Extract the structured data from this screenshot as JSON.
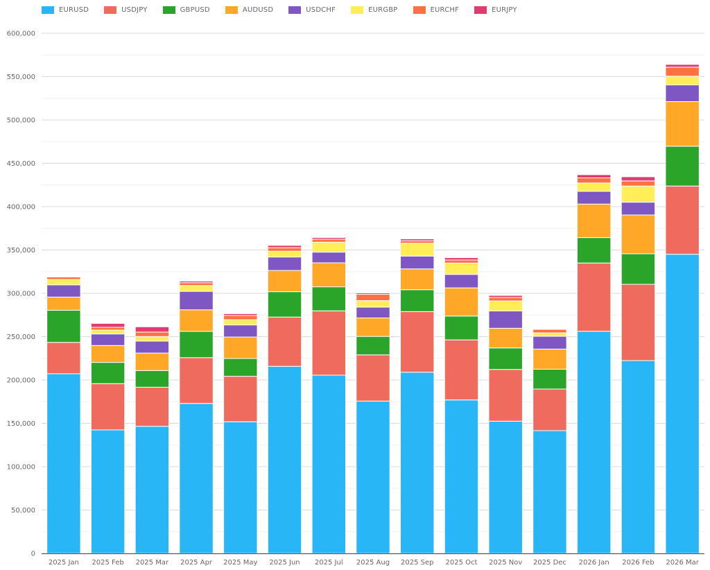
{
  "chart_data": {
    "type": "bar",
    "stacked": true,
    "title": "",
    "xlabel": "",
    "ylabel": "",
    "ylim": [
      0,
      600000
    ],
    "yticks": [
      0,
      50000,
      100000,
      150000,
      200000,
      250000,
      300000,
      350000,
      400000,
      450000,
      500000,
      550000,
      600000
    ],
    "ytick_labels": [
      "0",
      "50,000",
      "100,000",
      "150,000",
      "200,000",
      "250,000",
      "300,000",
      "350,000",
      "400,000",
      "450,000",
      "500,000",
      "550,000",
      "600,000"
    ],
    "grid": true,
    "legend_position": "top-left",
    "categories": [
      "2025 Jan",
      "2025 Feb",
      "2025 Mar",
      "2025 Apr",
      "2025 May",
      "2025 Jun",
      "2025 Jul",
      "2025 Aug",
      "2025 Sep",
      "2025 Oct",
      "2025 Nov",
      "2025 Dec",
      "2026 Jan",
      "2026 Feb",
      "2026 Mar"
    ],
    "series": [
      {
        "name": "EURUSD",
        "color": "#29b6f6",
        "values": [
          207200,
          142400,
          146600,
          173000,
          151800,
          215800,
          205600,
          175700,
          209000,
          177000,
          152500,
          141600,
          256300,
          222400,
          345100
        ]
      },
      {
        "name": "USDJPY",
        "color": "#ef6b5e",
        "values": [
          36200,
          53400,
          45100,
          52800,
          52500,
          56800,
          74200,
          53300,
          69900,
          69300,
          59700,
          48000,
          78700,
          88000,
          78700
        ]
      },
      {
        "name": "GBPUSD",
        "color": "#2aa52a",
        "values": [
          37100,
          24500,
          19200,
          30400,
          20500,
          29300,
          27700,
          21300,
          25300,
          27500,
          24800,
          22900,
          29300,
          35200,
          45900
        ]
      },
      {
        "name": "AUDUSD",
        "color": "#ffa726",
        "values": [
          15200,
          19500,
          20200,
          24800,
          24800,
          24500,
          27700,
          21300,
          24000,
          32500,
          22700,
          23200,
          38700,
          44800,
          51500
        ]
      },
      {
        "name": "USDCHF",
        "color": "#7e57c2",
        "values": [
          14100,
          13300,
          13800,
          21300,
          13900,
          15500,
          12300,
          12500,
          14700,
          15500,
          20000,
          14700,
          14700,
          14700,
          19200
        ]
      },
      {
        "name": "EURGBP",
        "color": "#ffee58",
        "values": [
          6200,
          4500,
          5300,
          6700,
          6100,
          6700,
          11500,
          7500,
          14900,
          13100,
          11500,
          4000,
          9600,
          18700,
          10100
        ]
      },
      {
        "name": "EURCHF",
        "color": "#ff7043",
        "values": [
          3000,
          3200,
          5100,
          3200,
          4800,
          4000,
          3500,
          7200,
          2900,
          3500,
          4000,
          4000,
          5900,
          5900,
          10400
        ]
      },
      {
        "name": "EURJPY",
        "color": "#e03c6e",
        "values": [
          500,
          4500,
          6100,
          1900,
          2100,
          2700,
          1900,
          1600,
          2100,
          2700,
          2400,
          800,
          3700,
          4800,
          3200
        ]
      }
    ]
  }
}
